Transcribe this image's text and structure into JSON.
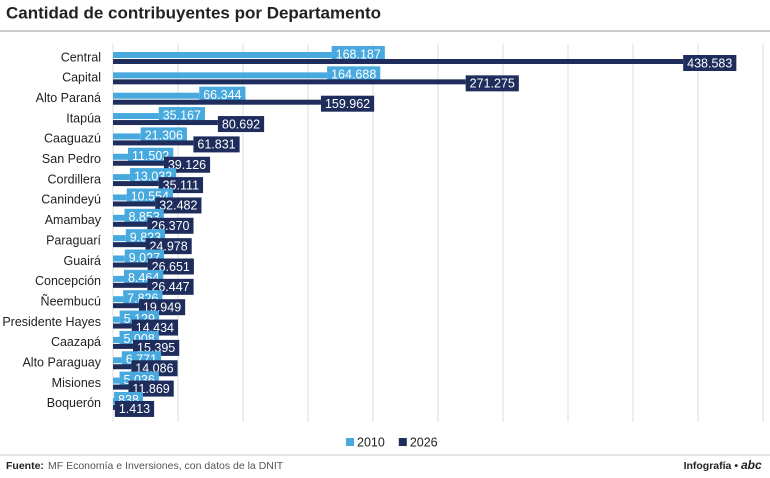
{
  "chart_data": {
    "type": "bar",
    "orientation": "horizontal",
    "title": "Cantidad de contribuyentes por Departamento",
    "categories": [
      "Central",
      "Capital",
      "Alto Paraná",
      "Itapúa",
      "Caaguazú",
      "San Pedro",
      "Cordillera",
      "Canindeyú",
      "Amambay",
      "Paraguarí",
      "Guairá",
      "Concepción",
      "Ñeembucú",
      "Presidente Hayes",
      "Caazapá",
      "Alto Paraguay",
      "Misiones",
      "Boquerón"
    ],
    "series": [
      {
        "name": "2010",
        "color": "#48a9de",
        "values": [
          168187,
          164688,
          66344,
          35167,
          21306,
          11502,
          13032,
          10554,
          8853,
          9823,
          9027,
          8464,
          7826,
          5129,
          5008,
          6771,
          5036,
          838
        ],
        "value_labels": [
          "168.187",
          "164.688",
          "66.344",
          "35.167",
          "21.306",
          "11.502",
          "13.032",
          "10.554",
          "8.853",
          "9.823",
          "9.027",
          "8.464",
          "7.826",
          "5.129",
          "5.008",
          "6.771",
          "5.036",
          "838"
        ]
      },
      {
        "name": "2026",
        "color": "#1e2d5c",
        "values": [
          438583,
          271275,
          159962,
          80692,
          61831,
          39126,
          35111,
          32482,
          26370,
          24978,
          26651,
          26447,
          19949,
          14434,
          15395,
          14086,
          11869,
          1413
        ],
        "value_labels": [
          "438.583",
          "271.275",
          "159.962",
          "80.692",
          "61.831",
          "39.126",
          "35.111",
          "32.482",
          "26.370",
          "24.978",
          "26.651",
          "26.447",
          "19.949",
          "14.434",
          "15.395",
          "14.086",
          "11.869",
          "1.413"
        ]
      }
    ],
    "xlim": [
      0,
      500000
    ],
    "xticks": [
      0,
      50000,
      100000,
      150000,
      200000,
      250000,
      300000,
      350000,
      400000,
      450000,
      500000
    ],
    "grid": true
  },
  "footer": {
    "source_label": "Fuente:",
    "source": "MF Economía e Inversiones, con datos de la DNIT",
    "credit": "Infografía •",
    "brand": "abc"
  }
}
